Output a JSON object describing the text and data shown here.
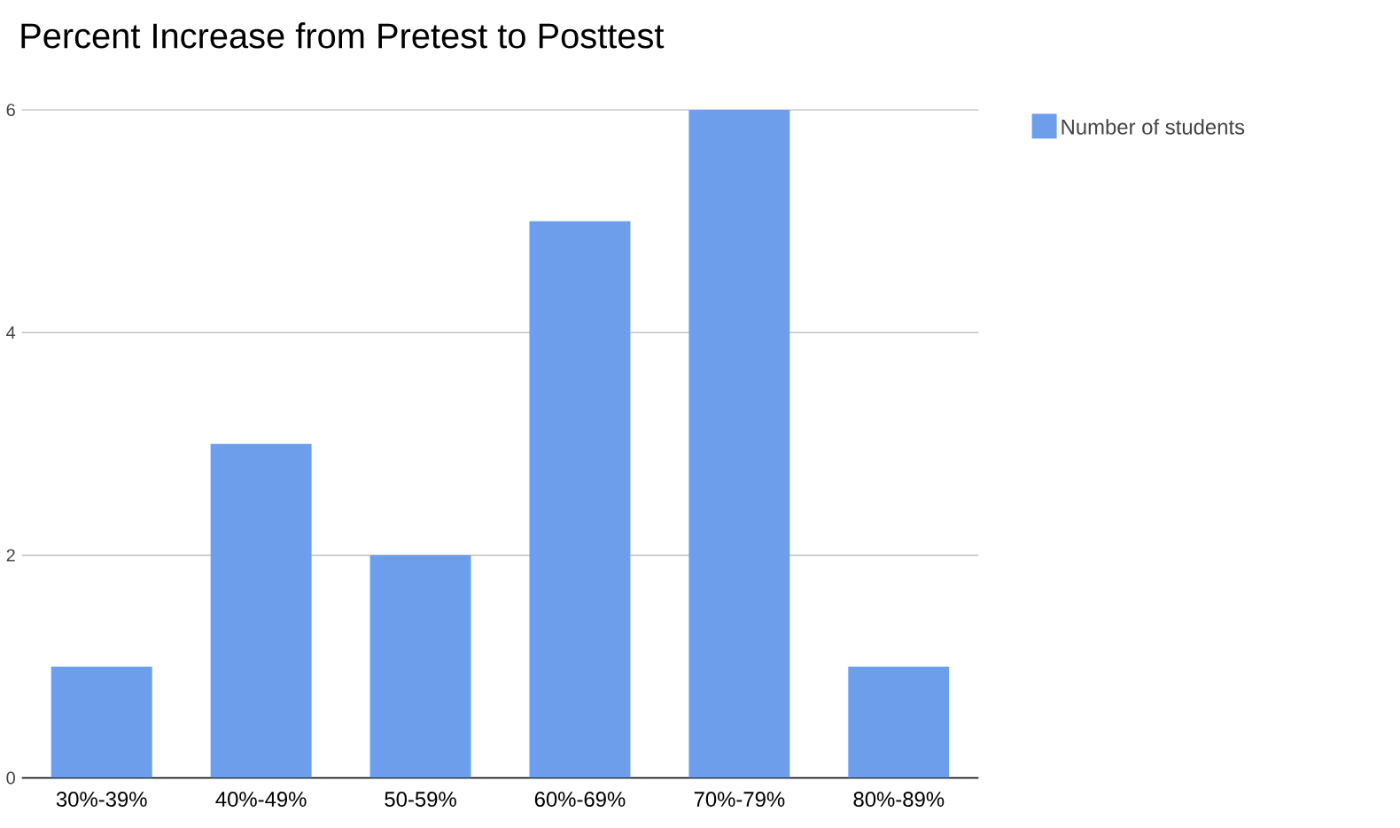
{
  "chart_data": {
    "type": "bar",
    "title": "Percent Increase from Pretest to Posttest",
    "categories": [
      "30%-39%",
      "40%-49%",
      "50-59%",
      "60%-69%",
      "70%-79%",
      "80%-89%"
    ],
    "series": [
      {
        "name": "Number of students",
        "color": "#6d9eeb",
        "values": [
          1,
          3,
          2,
          5,
          6,
          1
        ]
      }
    ],
    "ylim": [
      0,
      6
    ],
    "yticks": [
      0,
      2,
      4,
      6
    ],
    "grid": "y",
    "legend": "top right"
  }
}
